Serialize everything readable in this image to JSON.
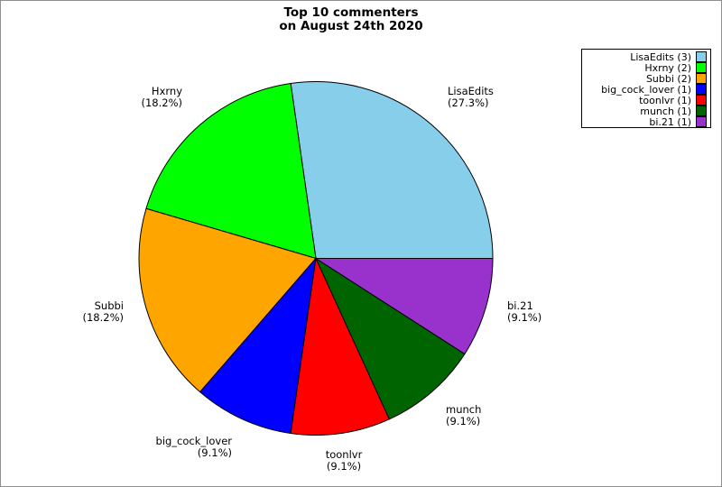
{
  "title": {
    "line1": "Top 10 commenters",
    "line2": "on August 24th 2020"
  },
  "chart_data": {
    "type": "pie",
    "title": "Top 10 commenters on August 24th 2020",
    "start_angle_deg": 0,
    "direction": "counterclockwise",
    "legend_position": "upper right",
    "total_comments": 11,
    "slices": [
      {
        "label": "LisaEdits",
        "count": 3,
        "percent": 27.3,
        "percent_label": "(27.3%)",
        "color": "#87CEEB",
        "legend_label": "LisaEdits (3)"
      },
      {
        "label": "Hxrny",
        "count": 2,
        "percent": 18.2,
        "percent_label": "(18.2%)",
        "color": "#00FF00",
        "legend_label": "Hxrny (2)"
      },
      {
        "label": "Subbi",
        "count": 2,
        "percent": 18.2,
        "percent_label": "(18.2%)",
        "color": "#FFA500",
        "legend_label": "Subbi (2)"
      },
      {
        "label": "big_cock_lover",
        "count": 1,
        "percent": 9.1,
        "percent_label": "(9.1%)",
        "color": "#0000FF",
        "legend_label": "big_cock_lover (1)"
      },
      {
        "label": "toonlvr",
        "count": 1,
        "percent": 9.1,
        "percent_label": "(9.1%)",
        "color": "#FF0000",
        "legend_label": "toonlvr (1)"
      },
      {
        "label": "munch",
        "count": 1,
        "percent": 9.1,
        "percent_label": "(9.1%)",
        "color": "#006400",
        "legend_label": "munch (1)"
      },
      {
        "label": "bi.21",
        "count": 1,
        "percent": 9.1,
        "percent_label": "(9.1%)",
        "color": "#9932CC",
        "legend_label": "bi.21 (1)"
      }
    ]
  }
}
